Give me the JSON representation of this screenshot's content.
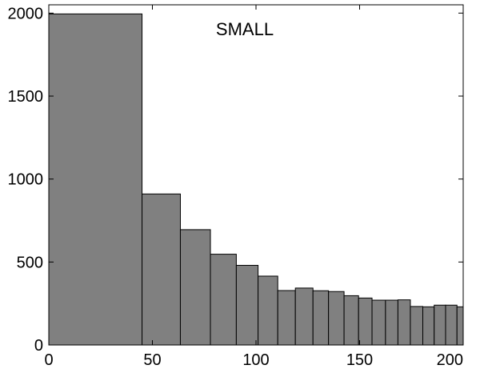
{
  "chart_data": {
    "type": "bar",
    "title": "SMALL",
    "xlabel": "",
    "ylabel": "",
    "xlim": [
      0,
      200
    ],
    "ylim": [
      0,
      2050
    ],
    "x_ticks": [
      0,
      50,
      100,
      150,
      200
    ],
    "y_ticks": [
      0,
      500,
      1000,
      1500,
      2000
    ],
    "grid": false,
    "bar_color": "#808080",
    "bar_edge_color": "#000000",
    "bins": [
      {
        "x0": 0,
        "x1": 45,
        "value": 1995
      },
      {
        "x0": 45,
        "x1": 63.5,
        "value": 910
      },
      {
        "x0": 63.5,
        "x1": 78,
        "value": 695
      },
      {
        "x0": 78,
        "x1": 90.5,
        "value": 547
      },
      {
        "x0": 90.5,
        "x1": 101,
        "value": 480
      },
      {
        "x0": 101,
        "x1": 110.5,
        "value": 415
      },
      {
        "x0": 110.5,
        "x1": 119,
        "value": 328
      },
      {
        "x0": 119,
        "x1": 127.5,
        "value": 343
      },
      {
        "x0": 127.5,
        "x1": 135,
        "value": 327
      },
      {
        "x0": 135,
        "x1": 142.5,
        "value": 322
      },
      {
        "x0": 142.5,
        "x1": 149.5,
        "value": 297
      },
      {
        "x0": 149.5,
        "x1": 156,
        "value": 283
      },
      {
        "x0": 156,
        "x1": 162.5,
        "value": 270
      },
      {
        "x0": 162.5,
        "x1": 168.5,
        "value": 270
      },
      {
        "x0": 168.5,
        "x1": 174.5,
        "value": 272
      },
      {
        "x0": 174.5,
        "x1": 180.5,
        "value": 232
      },
      {
        "x0": 180.5,
        "x1": 186,
        "value": 230
      },
      {
        "x0": 186,
        "x1": 191.5,
        "value": 240
      },
      {
        "x0": 191.5,
        "x1": 197,
        "value": 240
      },
      {
        "x0": 197,
        "x1": 200,
        "value": 230
      }
    ]
  }
}
